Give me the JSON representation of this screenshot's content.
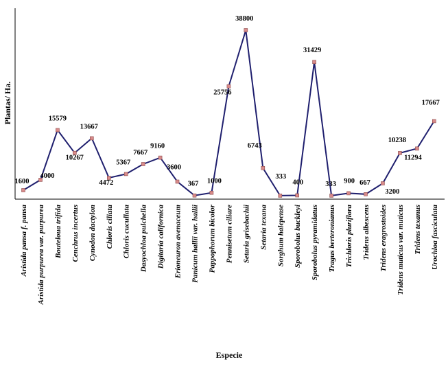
{
  "chart_data": {
    "type": "line",
    "title": "",
    "xlabel": "Especie",
    "ylabel": "Plantas/ Ha.",
    "ylim": [
      0,
      40000
    ],
    "grid": false,
    "legend": "none",
    "line_color": "#1f1f6e",
    "marker_color": "#d98b8b",
    "categories": [
      "Aristida pansa f. pansa",
      "Aristida purpurea var. purpurea",
      "Bouteloua trifida",
      "Cenchrus incertus",
      "Cynodon dactylon",
      "Chloris ciliata",
      "Chloris cucullata",
      "Dasyochloa pulchella",
      "Digitaria californica",
      "Erioneuron avenaceum",
      "Panicum hallii var. hallii",
      "Pappophorum bicolor",
      "Pennisetum ciliare",
      "Setaria grisebachii",
      "Setaria texana",
      "Sorghum halepense",
      "Sporobolus buckleyi",
      "Sporobolus pyramidatus",
      "Tragus berteronianus",
      "Trichloris pluriflora",
      "Tridens albescens",
      "Tridens eragrostoides",
      "Tridens muticus var. muticus",
      "Tridens texanus",
      "Urochloa fasciculata"
    ],
    "values": [
      1600,
      4000,
      15579,
      10267,
      13667,
      4472,
      5367,
      7667,
      9160,
      3600,
      367,
      1000,
      25756,
      38800,
      6743,
      333,
      400,
      31429,
      333,
      900,
      667,
      3200,
      10238,
      11294,
      17667
    ],
    "labels": [
      "1600",
      "4000",
      "15579",
      "10267",
      "13667",
      "4472",
      "5367",
      "7667",
      "9160",
      "3600",
      "367",
      "1000",
      "25756",
      "38800",
      "6743",
      "333",
      "400",
      "31429",
      "333",
      "900",
      "667",
      "3200",
      "10238",
      "11294",
      "17667"
    ]
  }
}
